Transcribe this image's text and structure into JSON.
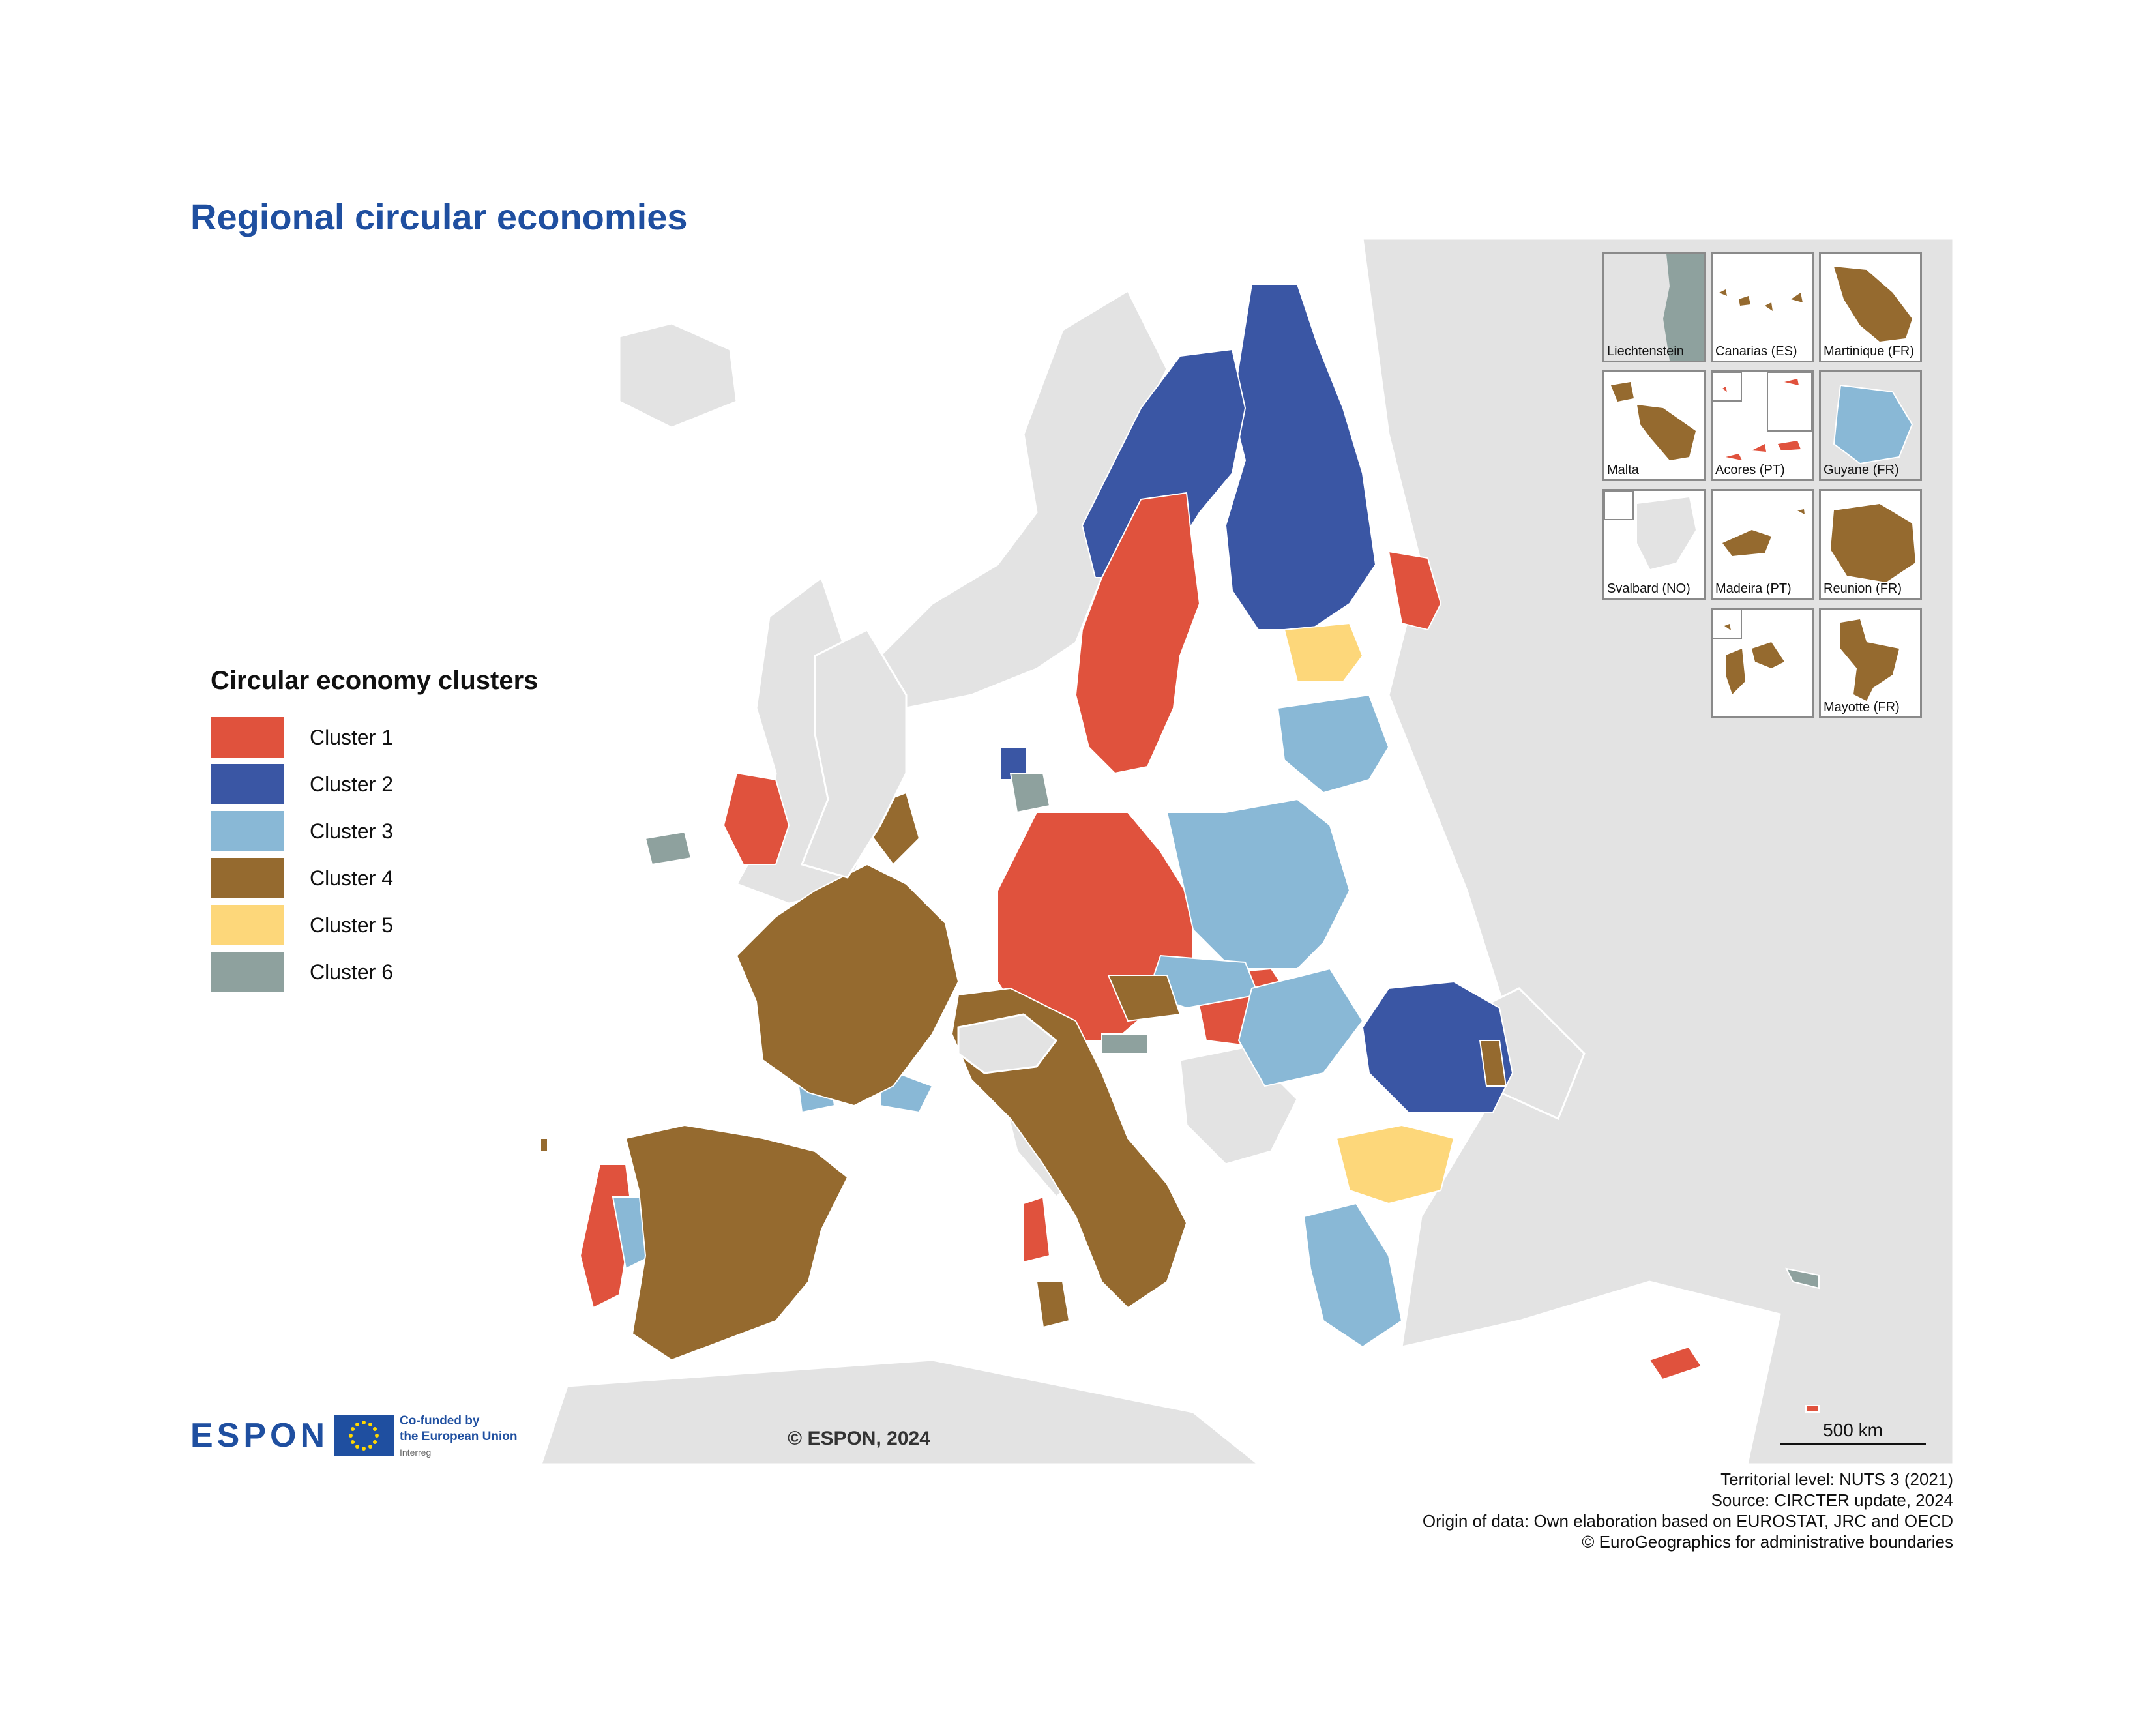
{
  "title": "Regional circular economies",
  "legend": {
    "title": "Circular economy clusters",
    "items": [
      {
        "label": "Cluster 1",
        "color": "#e0523d"
      },
      {
        "label": "Cluster 2",
        "color": "#3a56a4"
      },
      {
        "label": "Cluster 3",
        "color": "#89b8d6"
      },
      {
        "label": "Cluster 4",
        "color": "#956a2f"
      },
      {
        "label": "Cluster 5",
        "color": "#fdd77a"
      },
      {
        "label": "Cluster 6",
        "color": "#8ea19e"
      }
    ]
  },
  "insets": [
    {
      "label": "Liechtenstein",
      "cluster": "Cluster 6"
    },
    {
      "label": "Canarias (ES)",
      "cluster": "Cluster 4"
    },
    {
      "label": "Martinique (FR)",
      "cluster": "Cluster 4"
    },
    {
      "label": "Malta",
      "cluster": "Cluster 4"
    },
    {
      "label": "Acores (PT)",
      "cluster": "Cluster 1"
    },
    {
      "label": "Guyane (FR)",
      "cluster": "Cluster 3"
    },
    {
      "label": "Svalbard (NO)",
      "cluster": ""
    },
    {
      "label": "Madeira (PT)",
      "cluster": "Cluster 4"
    },
    {
      "label": "Reunion (FR)",
      "cluster": "Cluster 4"
    },
    {
      "label": "",
      "cluster": "Cluster 4"
    },
    {
      "label": "Mayotte (FR)",
      "cluster": "Cluster 4"
    }
  ],
  "logos": {
    "espon": "ESPON",
    "eu_line1": "Co-funded by",
    "eu_line2": "the European Union",
    "eu_line3": "Interreg"
  },
  "copyright": "© ESPON, 2024",
  "scale": {
    "label": "500 km"
  },
  "credits": [
    "Territorial level: NUTS 3 (2021)",
    "Source: CIRCTER update, 2024",
    "Origin of data: Own elaboration based on EUROSTAT, JRC and OECD",
    "© EuroGeographics for administrative boundaries"
  ],
  "colors": {
    "background_land": "#e3e3e3",
    "sea": "#ffffff",
    "title": "#1f4fa0"
  }
}
